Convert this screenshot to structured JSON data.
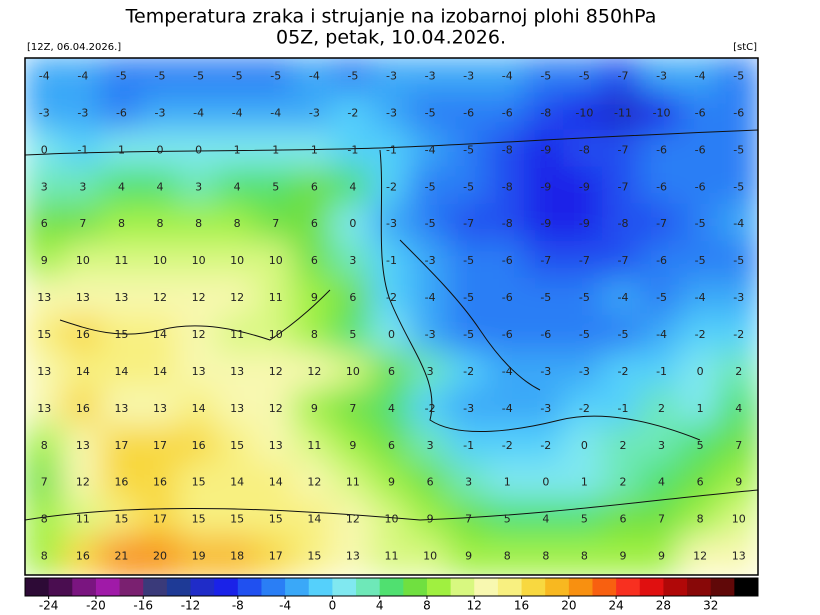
{
  "header": {
    "title": "Temperatura zraka i strujanje na izobarnoj plohi 850hPa",
    "subtitle": "05Z, petak, 10.04.2026.",
    "run_label": "[12Z, 06.04.2026.]",
    "unit_label": "[stC]"
  },
  "map": {
    "rows": [
      [
        -4,
        -4,
        -5,
        -5,
        -5,
        -5,
        -5,
        -4,
        -5,
        -3,
        -3,
        -3,
        -4,
        -5,
        -5,
        -7,
        -3,
        -4,
        -5
      ],
      [
        -3,
        -3,
        -6,
        -3,
        -4,
        -4,
        -4,
        -3,
        -2,
        -3,
        -5,
        -6,
        -6,
        -8,
        -10,
        -11,
        -10,
        -6,
        -6
      ],
      [
        0,
        -1,
        1,
        0,
        0,
        1,
        1,
        1,
        -1,
        -1,
        -4,
        -5,
        -8,
        -9,
        -8,
        -7,
        -6,
        -6,
        -5
      ],
      [
        3,
        3,
        4,
        4,
        3,
        4,
        5,
        6,
        4,
        -2,
        -5,
        -5,
        -8,
        -9,
        -9,
        -7,
        -6,
        -6,
        -5
      ],
      [
        6,
        7,
        8,
        8,
        8,
        8,
        7,
        6,
        0,
        -3,
        -5,
        -7,
        -8,
        -9,
        -9,
        -8,
        -7,
        -5,
        -4
      ],
      [
        9,
        10,
        11,
        10,
        10,
        10,
        10,
        6,
        3,
        -1,
        -3,
        -5,
        -6,
        -7,
        -7,
        -7,
        -6,
        -5,
        -5
      ],
      [
        13,
        13,
        13,
        12,
        12,
        12,
        11,
        9,
        6,
        -2,
        -4,
        -5,
        -6,
        -5,
        -5,
        -4,
        -5,
        -4,
        -3
      ],
      [
        15,
        16,
        15,
        14,
        12,
        11,
        10,
        8,
        5,
        0,
        -3,
        -5,
        -6,
        -6,
        -5,
        -5,
        -4,
        -2,
        -2
      ],
      [
        13,
        14,
        14,
        14,
        13,
        13,
        12,
        12,
        10,
        6,
        3,
        -2,
        -4,
        -3,
        -3,
        -2,
        -1,
        0,
        2
      ],
      [
        13,
        16,
        13,
        13,
        14,
        13,
        12,
        9,
        7,
        4,
        -2,
        -3,
        -4,
        -3,
        -2,
        -1,
        2,
        1,
        4
      ],
      [
        8,
        13,
        17,
        17,
        16,
        15,
        13,
        11,
        9,
        6,
        3,
        -1,
        -2,
        -2,
        0,
        2,
        3,
        5,
        7
      ],
      [
        7,
        12,
        16,
        16,
        15,
        14,
        14,
        12,
        11,
        9,
        6,
        3,
        1,
        0,
        1,
        2,
        4,
        6,
        9
      ],
      [
        8,
        11,
        15,
        17,
        15,
        15,
        15,
        14,
        12,
        10,
        9,
        7,
        5,
        4,
        5,
        6,
        7,
        8,
        10
      ],
      [
        8,
        16,
        21,
        20,
        19,
        18,
        17,
        15,
        13,
        11,
        10,
        9,
        8,
        8,
        8,
        9,
        9,
        12,
        13
      ]
    ]
  },
  "colorbar": {
    "range": [
      -26,
      36
    ],
    "colors": [
      "#2d0a36",
      "#4a0d50",
      "#7a1580",
      "#a01aa8",
      "#7a2070",
      "#3a3a7a",
      "#1e3a96",
      "#1f2cc8",
      "#1a22e8",
      "#2050f0",
      "#2a7ef5",
      "#3aa8f8",
      "#55d0fb",
      "#80e8f0",
      "#6ee8b8",
      "#50e070",
      "#70e040",
      "#a0f040",
      "#d8f880",
      "#f8f8b0",
      "#f8f080",
      "#f8d840",
      "#f8b820",
      "#f89010",
      "#f86010",
      "#f83020",
      "#e01010",
      "#b00808",
      "#880808",
      "#600808",
      "#000000"
    ],
    "ticks": [
      -24,
      -20,
      -16,
      -12,
      -8,
      -4,
      0,
      4,
      8,
      12,
      16,
      20,
      24,
      28,
      32
    ]
  }
}
